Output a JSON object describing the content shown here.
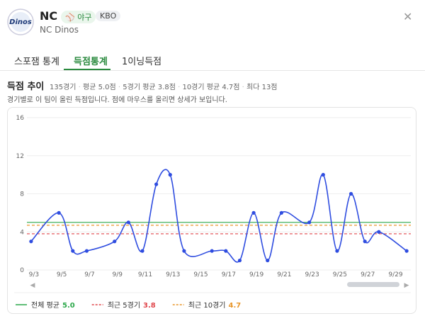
{
  "header": {
    "team": "NC",
    "sport_badge": "야구",
    "league_badge": "KBO",
    "team_full": "NC Dinos",
    "logo_text": "Dinos"
  },
  "tabs": [
    "스포잼 통계",
    "득점통계",
    "1이닝득점"
  ],
  "active_tab": 1,
  "section": {
    "title": "득점 추이",
    "stats": [
      "135경기",
      "평균 5.0점",
      "5경기 평균 3.8점",
      "10경기 평균 4.7점",
      "최다 13점"
    ],
    "description": "경기별로 이 팀이 올린 득점입니다. 점에 마우스를 올리면 상세가 보입니다."
  },
  "chart_data": {
    "type": "line",
    "x": [
      3,
      5,
      6,
      7,
      9,
      10,
      11,
      12,
      13,
      14,
      16,
      17,
      18,
      19,
      20,
      21,
      23,
      24,
      25,
      26,
      27,
      28,
      30
    ],
    "values": [
      3,
      6,
      2,
      2,
      3,
      5,
      2,
      9,
      10,
      2,
      2,
      2,
      1,
      6,
      1,
      6,
      5,
      10,
      2,
      8,
      3,
      4,
      2
    ],
    "color": "#2f4de0",
    "xlim": [
      2.7,
      30.3
    ],
    "xticks": [
      {
        "value": 3,
        "label": "9/3"
      },
      {
        "value": 5,
        "label": "9/5"
      },
      {
        "value": 7,
        "label": "9/7"
      },
      {
        "value": 9,
        "label": "9/9"
      },
      {
        "value": 11,
        "label": "9/11"
      },
      {
        "value": 13,
        "label": "9/13"
      },
      {
        "value": 15,
        "label": "9/15"
      },
      {
        "value": 17,
        "label": "9/17"
      },
      {
        "value": 19,
        "label": "9/19"
      },
      {
        "value": 21,
        "label": "9/21"
      },
      {
        "value": 23,
        "label": "9/23"
      },
      {
        "value": 25,
        "label": "9/25"
      },
      {
        "value": 27,
        "label": "9/27"
      },
      {
        "value": 29,
        "label": "9/29"
      }
    ],
    "ylim": [
      0,
      16
    ],
    "yticks": [
      0,
      4,
      8,
      12,
      16
    ],
    "grid": true,
    "reference_lines": [
      {
        "name": "전체 평균",
        "value": 5,
        "value_label": "5.0",
        "color": "#2ca84a",
        "style": "solid"
      },
      {
        "name": "최근 5경기",
        "value": 3.8,
        "value_label": "3.8",
        "color": "#e0474c",
        "style": "dashed"
      },
      {
        "name": "최근 10경기",
        "value": 4.7,
        "value_label": "4.7",
        "color": "#e8962a",
        "style": "dashed"
      }
    ]
  }
}
